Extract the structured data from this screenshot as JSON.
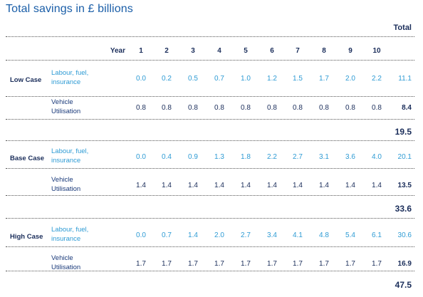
{
  "title": "Total savings in £ billions",
  "total_header": "Total",
  "year_label": "Year",
  "years": [
    "1",
    "2",
    "3",
    "4",
    "5",
    "6",
    "7",
    "8",
    "9",
    "10"
  ],
  "cases": [
    {
      "name": "Low Case",
      "rows": [
        {
          "label1": "Labour, fuel,",
          "label2": "insurance",
          "values": [
            "0.0",
            "0.2",
            "0.5",
            "0.7",
            "1.0",
            "1.2",
            "1.5",
            "1.7",
            "2.0",
            "2.2"
          ],
          "total": "11.1"
        },
        {
          "label1": "Vehicle",
          "label2": "Utilisation",
          "values": [
            "0.8",
            "0.8",
            "0.8",
            "0.8",
            "0.8",
            "0.8",
            "0.8",
            "0.8",
            "0.8",
            "0.8"
          ],
          "total": "8.4"
        }
      ],
      "grand_total": "19.5"
    },
    {
      "name": "Base Case",
      "rows": [
        {
          "label1": "Labour, fuel,",
          "label2": "insurance",
          "values": [
            "0.0",
            "0.4",
            "0.9",
            "1.3",
            "1.8",
            "2.2",
            "2.7",
            "3.1",
            "3.6",
            "4.0"
          ],
          "total": "20.1"
        },
        {
          "label1": "Vehicle",
          "label2": "Utilisation",
          "values": [
            "1.4",
            "1.4",
            "1.4",
            "1.4",
            "1.4",
            "1.4",
            "1.4",
            "1.4",
            "1.4",
            "1.4"
          ],
          "total": "13.5"
        }
      ],
      "grand_total": "33.6"
    },
    {
      "name": "High Case",
      "rows": [
        {
          "label1": "Labour, fuel,",
          "label2": "insurance",
          "values": [
            "0.0",
            "0.7",
            "1.4",
            "2.0",
            "2.7",
            "3.4",
            "4.1",
            "4.8",
            "5.4",
            "6.1"
          ],
          "total": "30.6"
        },
        {
          "label1": "Vehicle",
          "label2": "Utilisation",
          "values": [
            "1.7",
            "1.7",
            "1.7",
            "1.7",
            "1.7",
            "1.7",
            "1.7",
            "1.7",
            "1.7",
            "1.7"
          ],
          "total": "16.9"
        }
      ],
      "grand_total": "47.5"
    }
  ]
}
